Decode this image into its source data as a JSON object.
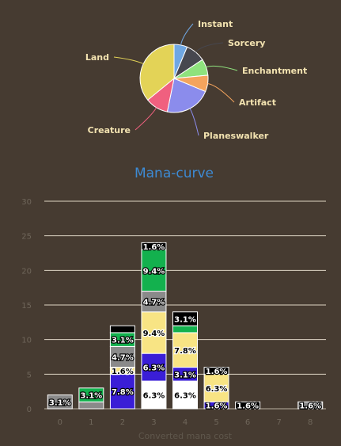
{
  "pie_chart": {
    "type": "pie",
    "slices": [
      {
        "label": "Instant",
        "value": 6.3,
        "color": "#6fa7e3"
      },
      {
        "label": "Sorcery",
        "value": 9.4,
        "color": "#47474f"
      },
      {
        "label": "Enchantment",
        "value": 7.8,
        "color": "#8ee27d"
      },
      {
        "label": "Artifact",
        "value": 7.8,
        "color": "#f4a45d"
      },
      {
        "label": "Planeswalker",
        "value": 21.9,
        "color": "#8b8cec"
      },
      {
        "label": "Creature",
        "value": 10.9,
        "color": "#f0607f"
      },
      {
        "label": "Land",
        "value": 35.9,
        "color": "#e3d357"
      }
    ]
  },
  "chart_data": {
    "type": "bar",
    "title": "Mana-curve",
    "xlabel": "Converted mana cost",
    "ylabel": "",
    "categories": [
      "0",
      "1",
      "2",
      "3",
      "4",
      "5",
      "6",
      "7",
      "8"
    ],
    "ylim": [
      0,
      30
    ],
    "yticks": [
      0,
      5,
      10,
      15,
      20,
      25,
      30
    ],
    "grid": true,
    "stacked": true,
    "series": [
      {
        "color": "#ffffff",
        "label_color": "#000000",
        "values": [
          0,
          0,
          0,
          4,
          4,
          0,
          0,
          0,
          0
        ],
        "labels": [
          "",
          "",
          "",
          "6.3%",
          "6.3%",
          "",
          "",
          "",
          ""
        ]
      },
      {
        "color": "#3a1ed6",
        "label_color": "#ffffff",
        "values": [
          0,
          0,
          5,
          4,
          2,
          1,
          0,
          0,
          0
        ],
        "labels": [
          "",
          "",
          "7.8%",
          "6.3%",
          "3.1%",
          "1.6%",
          "",
          "",
          ""
        ]
      },
      {
        "color": "#f8e484",
        "label_color": "#000000",
        "values": [
          0,
          0,
          1,
          6,
          5,
          4,
          0,
          0,
          0
        ],
        "labels": [
          "",
          "",
          "1.6%",
          "9.4%",
          "7.8%",
          "6.3%",
          "",
          "",
          ""
        ]
      },
      {
        "color": "#8a8a8a",
        "label_color": "#ffffff",
        "values": [
          2,
          1,
          3,
          3,
          0,
          0,
          0,
          0,
          1
        ],
        "labels": [
          "3.1%",
          "",
          "4.7%",
          "4.7%",
          "",
          "",
          "",
          "",
          "1.6%"
        ]
      },
      {
        "color": "#13b14e",
        "label_color": "#ffffff",
        "values": [
          0,
          2,
          2,
          6,
          1,
          0,
          0,
          0,
          0
        ],
        "labels": [
          "",
          "3.1%",
          "3.1%",
          "9.4%",
          "",
          "",
          "",
          "",
          ""
        ]
      },
      {
        "color": "#000000",
        "label_color": "#ffffff",
        "values": [
          0,
          0,
          1,
          1,
          2,
          1,
          1,
          0,
          0
        ],
        "labels": [
          "",
          "",
          "",
          "1.6%",
          "3.1%",
          "1.6%",
          "1.6%",
          "",
          ""
        ]
      }
    ]
  }
}
